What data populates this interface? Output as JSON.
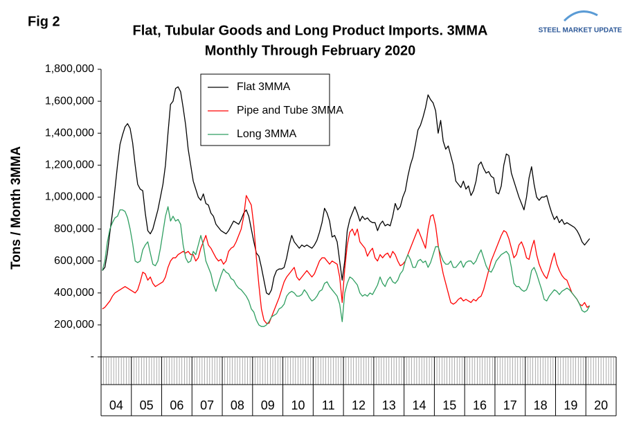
{
  "fig_label": "Fig 2",
  "logo": "STEEL MARKET UPDATE",
  "chart_data": {
    "type": "line",
    "title": "Flat, Tubular Goods and Long Product Imports. 3MMA",
    "subtitle": "Monthly Through February 2020",
    "y_label": "Tons / Month 3MMA",
    "ylim": [
      0,
      1800000
    ],
    "yticks": [
      {
        "value": 0,
        "label": "-"
      },
      {
        "value": 200000,
        "label": "200,000"
      },
      {
        "value": 400000,
        "label": "400,000"
      },
      {
        "value": 600000,
        "label": "600,000"
      },
      {
        "value": 800000,
        "label": "800,000"
      },
      {
        "value": 1000000,
        "label": "1,000,000"
      },
      {
        "value": 1200000,
        "label": "1,200,000"
      },
      {
        "value": 1400000,
        "label": "1,400,000"
      },
      {
        "value": 1600000,
        "label": "1,600,000"
      },
      {
        "value": 1800000,
        "label": "1,800,000"
      }
    ],
    "categories": [
      null,
      null,
      null,
      null,
      null,
      null,
      "04",
      null,
      null,
      null,
      null,
      null,
      null,
      null,
      null,
      null,
      null,
      null,
      "05",
      null,
      null,
      null,
      null,
      null,
      null,
      null,
      null,
      null,
      null,
      null,
      "06",
      null,
      null,
      null,
      null,
      null,
      null,
      null,
      null,
      null,
      null,
      null,
      "07",
      null,
      null,
      null,
      null,
      null,
      null,
      null,
      null,
      null,
      null,
      null,
      "08",
      null,
      null,
      null,
      null,
      null,
      null,
      null,
      null,
      null,
      null,
      null,
      "09",
      null,
      null,
      null,
      null,
      null,
      null,
      null,
      null,
      null,
      null,
      null,
      "10",
      null,
      null,
      null,
      null,
      null,
      null,
      null,
      null,
      null,
      null,
      null,
      "11",
      null,
      null,
      null,
      null,
      null,
      null,
      null,
      null,
      null,
      null,
      null,
      "12",
      null,
      null,
      null,
      null,
      null,
      null,
      null,
      null,
      null,
      null,
      null,
      "13",
      null,
      null,
      null,
      null,
      null,
      null,
      null,
      null,
      null,
      null,
      null,
      "14",
      null,
      null,
      null,
      null,
      null,
      null,
      null,
      null,
      null,
      null,
      null,
      "15",
      null,
      null,
      null,
      null,
      null,
      null,
      null,
      null,
      null,
      null,
      null,
      "16",
      null,
      null,
      null,
      null,
      null,
      null,
      null,
      null,
      null,
      null,
      null,
      "17",
      null,
      null,
      null,
      null,
      null,
      null,
      null,
      null,
      null,
      null,
      null,
      "18",
      null,
      null,
      null,
      null,
      null,
      null,
      null,
      null,
      null,
      null,
      null,
      "19",
      null,
      null,
      null,
      null,
      null,
      null,
      null,
      null,
      null,
      null,
      null,
      "20",
      null,
      null,
      null,
      null,
      null
    ],
    "series": [
      {
        "name": "Flat 3MMA",
        "color": "#000000",
        "values": [
          540000,
          560000,
          650000,
          780000,
          900000,
          1050000,
          1200000,
          1330000,
          1390000,
          1440000,
          1460000,
          1430000,
          1340000,
          1200000,
          1080000,
          1050000,
          1040000,
          900000,
          790000,
          770000,
          800000,
          860000,
          920000,
          1000000,
          1080000,
          1200000,
          1400000,
          1580000,
          1600000,
          1680000,
          1690000,
          1660000,
          1560000,
          1450000,
          1300000,
          1200000,
          1100000,
          1050000,
          1000000,
          980000,
          1020000,
          960000,
          950000,
          900000,
          880000,
          830000,
          810000,
          790000,
          780000,
          770000,
          790000,
          820000,
          850000,
          840000,
          830000,
          860000,
          900000,
          920000,
          880000,
          800000,
          720000,
          650000,
          630000,
          560000,
          480000,
          400000,
          390000,
          420000,
          500000,
          540000,
          550000,
          550000,
          560000,
          620000,
          700000,
          760000,
          720000,
          700000,
          680000,
          700000,
          690000,
          700000,
          690000,
          680000,
          700000,
          730000,
          780000,
          840000,
          930000,
          900000,
          850000,
          750000,
          760000,
          720000,
          600000,
          480000,
          600000,
          790000,
          860000,
          900000,
          940000,
          900000,
          850000,
          880000,
          860000,
          870000,
          850000,
          840000,
          840000,
          790000,
          830000,
          850000,
          820000,
          830000,
          820000,
          880000,
          960000,
          920000,
          940000,
          1000000,
          1040000,
          1130000,
          1200000,
          1250000,
          1330000,
          1420000,
          1450000,
          1500000,
          1560000,
          1640000,
          1610000,
          1590000,
          1540000,
          1400000,
          1480000,
          1350000,
          1300000,
          1320000,
          1260000,
          1200000,
          1100000,
          1080000,
          1060000,
          1100000,
          1050000,
          1070000,
          1010000,
          1040000,
          1100000,
          1200000,
          1220000,
          1180000,
          1150000,
          1160000,
          1130000,
          1120000,
          1030000,
          1020000,
          1070000,
          1200000,
          1270000,
          1260000,
          1150000,
          1100000,
          1050000,
          1000000,
          960000,
          920000,
          1000000,
          1120000,
          1190000,
          1080000,
          1000000,
          980000,
          1000000,
          1000000,
          1010000,
          950000,
          900000,
          860000,
          880000,
          840000,
          860000,
          830000,
          840000,
          830000,
          820000,
          810000,
          790000,
          760000,
          720000,
          700000,
          720000,
          740000,
          null,
          null,
          null,
          null,
          null,
          null,
          null,
          null,
          null,
          null
        ]
      },
      {
        "name": "Pipe and Tube 3MMA",
        "color": "#ff0000",
        "values": [
          300000,
          310000,
          330000,
          350000,
          380000,
          400000,
          410000,
          420000,
          430000,
          440000,
          430000,
          420000,
          410000,
          400000,
          420000,
          470000,
          530000,
          520000,
          480000,
          500000,
          460000,
          440000,
          450000,
          460000,
          470000,
          500000,
          560000,
          600000,
          620000,
          620000,
          640000,
          650000,
          660000,
          650000,
          660000,
          640000,
          640000,
          600000,
          620000,
          680000,
          720000,
          760000,
          700000,
          680000,
          650000,
          620000,
          600000,
          610000,
          580000,
          600000,
          660000,
          680000,
          690000,
          720000,
          760000,
          800000,
          880000,
          1010000,
          980000,
          950000,
          820000,
          620000,
          450000,
          300000,
          230000,
          210000,
          210000,
          250000,
          290000,
          330000,
          370000,
          420000,
          470000,
          500000,
          520000,
          540000,
          560000,
          500000,
          480000,
          500000,
          520000,
          540000,
          520000,
          500000,
          520000,
          560000,
          600000,
          620000,
          620000,
          600000,
          580000,
          600000,
          590000,
          580000,
          500000,
          340000,
          550000,
          700000,
          780000,
          800000,
          760000,
          800000,
          720000,
          700000,
          680000,
          630000,
          660000,
          680000,
          620000,
          600000,
          640000,
          620000,
          640000,
          650000,
          620000,
          660000,
          640000,
          600000,
          570000,
          580000,
          600000,
          640000,
          680000,
          720000,
          760000,
          800000,
          760000,
          720000,
          680000,
          800000,
          880000,
          890000,
          820000,
          700000,
          600000,
          520000,
          460000,
          400000,
          340000,
          330000,
          340000,
          360000,
          370000,
          350000,
          360000,
          350000,
          340000,
          360000,
          350000,
          370000,
          380000,
          420000,
          480000,
          540000,
          600000,
          640000,
          680000,
          720000,
          760000,
          790000,
          780000,
          740000,
          680000,
          620000,
          640000,
          700000,
          720000,
          680000,
          620000,
          610000,
          680000,
          730000,
          640000,
          580000,
          540000,
          510000,
          490000,
          540000,
          600000,
          650000,
          580000,
          540000,
          510000,
          490000,
          480000,
          440000,
          400000,
          380000,
          360000,
          330000,
          320000,
          340000,
          310000,
          320000,
          null,
          null,
          null,
          null,
          null,
          null,
          null,
          null,
          null,
          null
        ]
      },
      {
        "name": "Long 3MMA",
        "color": "#2e9e60",
        "values": [
          540000,
          600000,
          720000,
          800000,
          840000,
          870000,
          880000,
          920000,
          920000,
          910000,
          870000,
          800000,
          710000,
          600000,
          590000,
          600000,
          670000,
          700000,
          720000,
          650000,
          580000,
          570000,
          600000,
          680000,
          780000,
          880000,
          940000,
          850000,
          880000,
          850000,
          860000,
          830000,
          700000,
          620000,
          590000,
          600000,
          660000,
          640000,
          700000,
          760000,
          700000,
          600000,
          560000,
          520000,
          450000,
          410000,
          460000,
          510000,
          550000,
          530000,
          520000,
          490000,
          480000,
          450000,
          430000,
          420000,
          400000,
          380000,
          350000,
          300000,
          280000,
          230000,
          200000,
          190000,
          190000,
          200000,
          220000,
          250000,
          260000,
          270000,
          300000,
          310000,
          330000,
          380000,
          400000,
          410000,
          400000,
          380000,
          380000,
          390000,
          420000,
          400000,
          370000,
          350000,
          360000,
          380000,
          410000,
          420000,
          460000,
          470000,
          440000,
          420000,
          400000,
          380000,
          330000,
          220000,
          400000,
          460000,
          500000,
          490000,
          470000,
          450000,
          400000,
          380000,
          390000,
          380000,
          400000,
          390000,
          420000,
          450000,
          500000,
          460000,
          440000,
          480000,
          500000,
          470000,
          460000,
          480000,
          520000,
          540000,
          600000,
          640000,
          610000,
          560000,
          560000,
          600000,
          610000,
          590000,
          600000,
          560000,
          590000,
          640000,
          690000,
          690000,
          640000,
          600000,
          580000,
          580000,
          600000,
          560000,
          560000,
          580000,
          600000,
          560000,
          590000,
          600000,
          600000,
          580000,
          600000,
          640000,
          670000,
          620000,
          570000,
          540000,
          530000,
          560000,
          600000,
          620000,
          640000,
          650000,
          660000,
          640000,
          560000,
          460000,
          440000,
          440000,
          420000,
          410000,
          420000,
          460000,
          540000,
          560000,
          520000,
          470000,
          420000,
          360000,
          350000,
          380000,
          400000,
          420000,
          410000,
          390000,
          410000,
          420000,
          430000,
          420000,
          400000,
          380000,
          360000,
          330000,
          290000,
          280000,
          290000,
          320000,
          null,
          null,
          null,
          null,
          null,
          null,
          null,
          null,
          null,
          null
        ]
      }
    ],
    "legend": "top-center",
    "grid": false
  }
}
